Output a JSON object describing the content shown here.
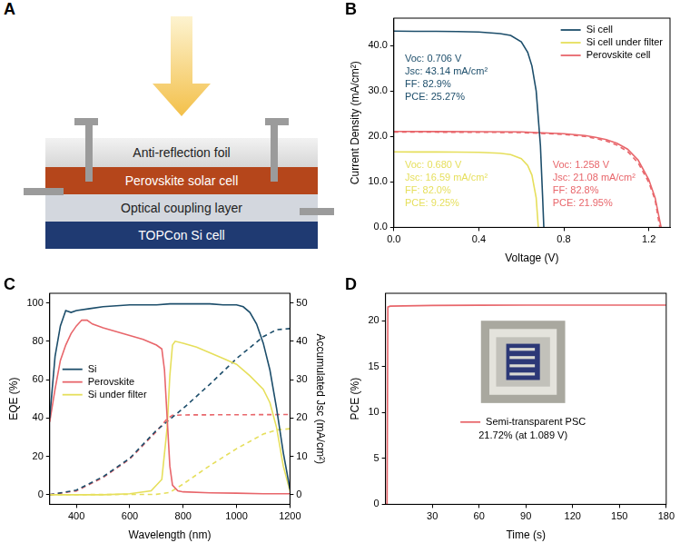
{
  "diagram": {
    "panel": "A",
    "layers": [
      "Anti-reflection foil",
      "Perovskite solar cell",
      "Optical coupling layer",
      "TOPCon Si cell"
    ]
  },
  "chart_data": [
    {
      "panel": "B",
      "type": "line",
      "x_label": "Voltage (V)",
      "y_label": "Current Density (mA/cm²)",
      "xlim": [
        0,
        1.3
      ],
      "xticks": [
        {
          "value": 0,
          "label": "0.0"
        },
        {
          "value": 0.4,
          "label": "0.4"
        },
        {
          "value": 0.8,
          "label": "0.8"
        },
        {
          "value": 1.2,
          "label": "1.2"
        }
      ],
      "ylim": [
        0,
        46
      ],
      "yticks": [
        {
          "value": 0,
          "label": "0.0"
        },
        {
          "value": 10,
          "label": "10.0"
        },
        {
          "value": 20,
          "label": "20.0"
        },
        {
          "value": 30,
          "label": "30.0"
        },
        {
          "value": 40,
          "label": "40.0"
        }
      ],
      "grid": false,
      "legend": "upper right",
      "series": [
        {
          "name": "Si cell",
          "color": "#1d4e6b",
          "line_style": "solid",
          "x": [
            0,
            0.1,
            0.2,
            0.3,
            0.4,
            0.5,
            0.55,
            0.6,
            0.63,
            0.65,
            0.67,
            0.69,
            0.7,
            0.706
          ],
          "values": [
            43.14,
            43.12,
            43.1,
            43.05,
            42.95,
            42.6,
            42.2,
            40.8,
            38.5,
            35.5,
            30.0,
            18.0,
            7.0,
            0
          ]
        },
        {
          "name": "Si cell under filter",
          "color": "#e6df5c",
          "line_style": "solid",
          "x": [
            0,
            0.1,
            0.2,
            0.3,
            0.4,
            0.5,
            0.55,
            0.6,
            0.63,
            0.65,
            0.67,
            0.68
          ],
          "values": [
            16.59,
            16.58,
            16.57,
            16.55,
            16.5,
            16.3,
            16.0,
            15.1,
            13.6,
            11.5,
            6.5,
            0
          ]
        },
        {
          "name": "Perovskite cell",
          "color": "#e8666b",
          "line_style": "solid",
          "x": [
            0,
            0.2,
            0.4,
            0.6,
            0.8,
            0.9,
            0.95,
            1.0,
            1.05,
            1.1,
            1.15,
            1.2,
            1.23,
            1.258
          ],
          "values": [
            21.08,
            21.06,
            21.03,
            20.98,
            20.6,
            20.2,
            19.8,
            19.3,
            18.5,
            17.2,
            14.8,
            10.5,
            6.5,
            0
          ]
        },
        {
          "color": "#e8666b",
          "line_style": "dashed",
          "x": [
            0,
            0.2,
            0.4,
            0.6,
            0.8,
            0.9,
            0.95,
            1.0,
            1.05,
            1.1,
            1.15,
            1.2,
            1.23,
            1.252
          ],
          "values": [
            20.95,
            20.93,
            20.9,
            20.85,
            20.45,
            20.0,
            19.55,
            19.0,
            18.1,
            16.7,
            14.2,
            9.9,
            6.0,
            0
          ]
        }
      ],
      "annotations": [
        {
          "color": "#1d4e6b",
          "lines": [
            "Voc: 0.706 V",
            "Jsc: 43.14 mA/cm²",
            "FF: 82.9%",
            "PCE: 25.27%"
          ]
        },
        {
          "color": "#e6df5c",
          "lines": [
            "Voc: 0.680 V",
            "Jsc: 16.59 mA/cm²",
            "FF: 82.0%",
            "PCE: 9.25%"
          ]
        },
        {
          "color": "#e8666b",
          "lines": [
            "Voc: 1.258 V",
            "Jsc: 21.08 mA/cm²",
            "FF: 82.8%",
            "PCE: 21.95%"
          ]
        }
      ]
    },
    {
      "panel": "C",
      "type": "line",
      "x_label": "Wavelength (nm)",
      "y_label": "EQE (%)",
      "y2_label": "Accumulated Jsc (mA/cm²)",
      "xlim": [
        300,
        1200
      ],
      "xticks": [
        400,
        600,
        800,
        1000,
        1200
      ],
      "ylim": [
        -5,
        105
      ],
      "yticks": [
        0,
        20,
        40,
        60,
        80,
        100
      ],
      "y2lim": [
        -2.5,
        52.5
      ],
      "y2ticks": [
        0,
        10,
        20,
        30,
        40,
        50
      ],
      "grid": false,
      "legend": "center left",
      "series": [
        {
          "name": "Si",
          "color": "#1d4e6b",
          "line_style": "solid",
          "x": [
            300,
            320,
            340,
            360,
            380,
            400,
            450,
            500,
            550,
            600,
            650,
            700,
            750,
            800,
            850,
            900,
            950,
            1000,
            1025,
            1050,
            1075,
            1100,
            1125,
            1150,
            1175,
            1200
          ],
          "values": [
            40,
            72,
            88,
            96,
            95,
            96,
            97,
            98,
            98.5,
            99,
            99,
            99,
            99.5,
            99.5,
            99.5,
            99.5,
            99,
            99,
            98,
            95,
            89,
            79,
            65,
            45,
            22,
            3
          ]
        },
        {
          "name": "Perovskite",
          "color": "#e8666b",
          "line_style": "solid",
          "x": [
            300,
            320,
            340,
            360,
            380,
            400,
            420,
            440,
            460,
            500,
            550,
            600,
            650,
            700,
            720,
            730,
            740,
            750,
            760,
            780,
            800,
            900,
            1000,
            1100,
            1200
          ],
          "values": [
            38,
            55,
            70,
            78,
            84,
            88,
            91,
            91,
            89,
            87,
            85,
            83,
            81,
            78,
            76,
            65,
            40,
            15,
            5,
            2,
            1.5,
            1,
            0.8,
            0.5,
            0.5
          ]
        },
        {
          "name": "Si under filter",
          "color": "#e6df5c",
          "line_style": "solid",
          "x": [
            300,
            500,
            600,
            680,
            720,
            740,
            750,
            760,
            770,
            800,
            850,
            900,
            950,
            1000,
            1050,
            1100,
            1125,
            1150,
            1175,
            1200
          ],
          "values": [
            0,
            0,
            0.5,
            2,
            8,
            35,
            62,
            78,
            80,
            79,
            77,
            74,
            71,
            68,
            62,
            55,
            48,
            35,
            15,
            2
          ]
        },
        {
          "color": "#1d4e6b",
          "line_style": "dashed",
          "axis": "y2",
          "x": [
            300,
            400,
            500,
            600,
            700,
            800,
            900,
            1000,
            1100,
            1150,
            1200
          ],
          "values": [
            0,
            1.2,
            4.7,
            9.5,
            16.8,
            22.5,
            28.8,
            35.5,
            41.2,
            43.0,
            43.3
          ]
        },
        {
          "color": "#e8666b",
          "line_style": "dashed",
          "axis": "y2",
          "x": [
            300,
            400,
            500,
            600,
            700,
            740,
            760,
            800,
            1200
          ],
          "values": [
            0,
            1.0,
            4.5,
            9.3,
            16.5,
            19.8,
            20.7,
            20.8,
            20.9
          ]
        },
        {
          "color": "#e6df5c",
          "line_style": "dashed",
          "axis": "y2",
          "x": [
            300,
            700,
            750,
            800,
            900,
            1000,
            1100,
            1150,
            1200
          ],
          "values": [
            0,
            0.1,
            0.6,
            2.8,
            7.6,
            12.0,
            15.8,
            16.9,
            17.2
          ]
        }
      ]
    },
    {
      "panel": "D",
      "type": "line",
      "x_label": "Time (s)",
      "y_label": "PCE (%)",
      "xlim": [
        0,
        180
      ],
      "xticks": [
        30,
        60,
        90,
        120,
        150,
        180
      ],
      "ylim": [
        0,
        23
      ],
      "yticks": [
        0,
        5,
        10,
        15,
        20
      ],
      "grid": false,
      "legend": "center",
      "series": [
        {
          "name": "Semi-transparent PSC",
          "color": "#e8666b",
          "line_style": "solid",
          "x": [
            0,
            1,
            1.5,
            3,
            30,
            60,
            90,
            180
          ],
          "values": [
            0,
            0,
            21.5,
            21.6,
            21.68,
            21.7,
            21.71,
            21.72
          ]
        }
      ],
      "annotations": [
        {
          "lines": [
            "21.72% (at 1.089 V)"
          ]
        }
      ]
    }
  ]
}
